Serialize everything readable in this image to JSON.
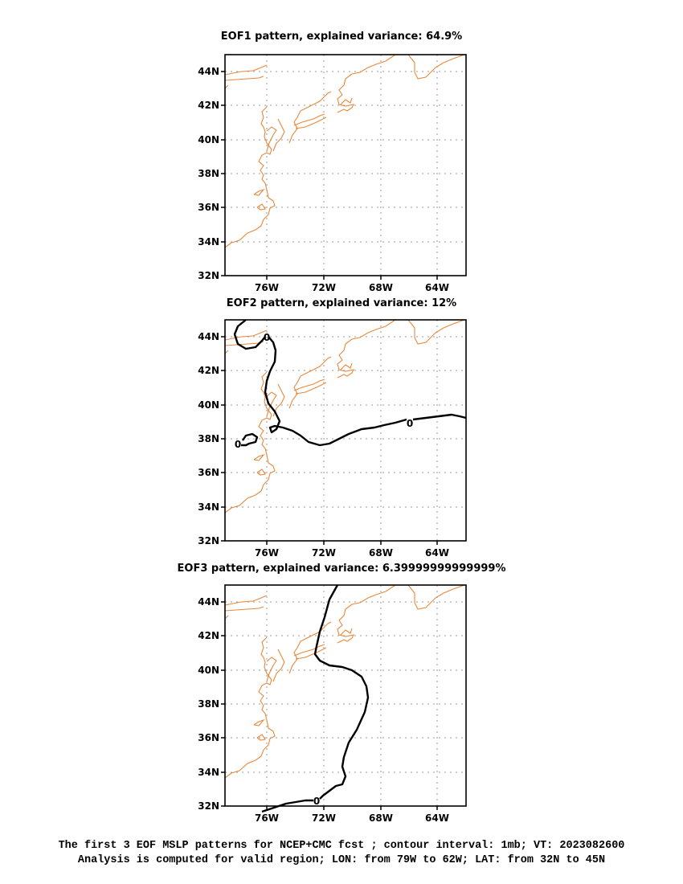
{
  "chart_data": [
    {
      "type": "contour-map",
      "title": "EOF1 pattern, explained variance: 64.9%",
      "lon_range": [
        -79,
        -62
      ],
      "lat_range": [
        32,
        45
      ],
      "x_ticks": [
        "76W",
        "72W",
        "68W",
        "64W"
      ],
      "y_ticks": [
        "32N",
        "34N",
        "36N",
        "38N",
        "40N",
        "42N",
        "44N"
      ],
      "grid": true,
      "contour_labels": []
    },
    {
      "type": "contour-map",
      "title": "EOF2 pattern, explained variance: 12%",
      "lon_range": [
        -79,
        -62
      ],
      "lat_range": [
        32,
        45
      ],
      "x_ticks": [
        "76W",
        "72W",
        "68W",
        "64W"
      ],
      "y_ticks": [
        "32N",
        "34N",
        "36N",
        "38N",
        "40N",
        "42N",
        "44N"
      ],
      "grid": true,
      "contour_labels": [
        "0",
        "0",
        "0"
      ]
    },
    {
      "type": "contour-map",
      "title": "EOF3 pattern, explained variance: 6.39999999999999%",
      "lon_range": [
        -79,
        -62
      ],
      "lat_range": [
        32,
        45
      ],
      "x_ticks": [
        "76W",
        "72W",
        "68W",
        "64W"
      ],
      "y_ticks": [
        "32N",
        "34N",
        "36N",
        "38N",
        "40N",
        "42N",
        "44N"
      ],
      "grid": true,
      "contour_labels": [
        "0"
      ]
    }
  ],
  "colors": {
    "coastline": "#e8883a",
    "contour": "#000000",
    "grid": "#9a9a9a"
  },
  "caption": {
    "line1": "The first 3 EOF MSLP patterns for NCEP+CMC fcst ; contour interval: 1mb; VT: 2023082600",
    "line2": "Analysis is computed for valid region; LON: from 79W to 62W; LAT: from 32N to 45N"
  }
}
